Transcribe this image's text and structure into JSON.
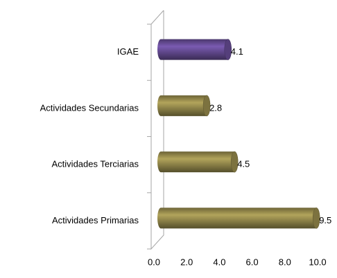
{
  "chart_data": {
    "type": "bar",
    "orientation": "horizontal",
    "categories": [
      "IGAE",
      "Actividades Secundarias",
      "Actividades Terciarias",
      "Actividades Primarias"
    ],
    "values": [
      4.1,
      2.8,
      4.5,
      9.5
    ],
    "colors": [
      "#6a4f9a",
      "#9b8f4f",
      "#9b8f4f",
      "#9b8f4f"
    ],
    "xlim": [
      0,
      10
    ],
    "xticks": [
      {
        "value": 0,
        "label": "0.0"
      },
      {
        "value": 2,
        "label": "2.0"
      },
      {
        "value": 4,
        "label": "4.0"
      },
      {
        "value": 6,
        "label": "6.0"
      },
      {
        "value": 8,
        "label": "8.0"
      },
      {
        "value": 10,
        "label": "10.0"
      }
    ],
    "grid": false
  }
}
